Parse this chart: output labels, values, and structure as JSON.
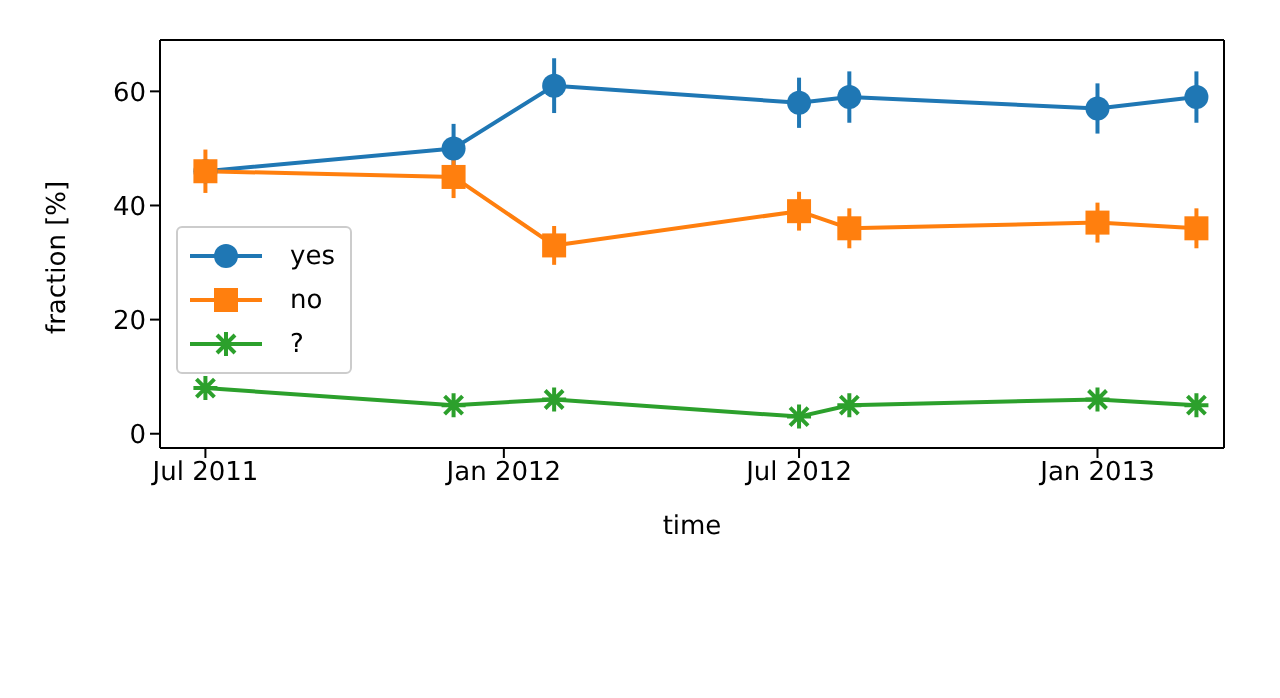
{
  "chart_data": {
    "type": "line",
    "xlabel": "time",
    "ylabel": "fraction [%]",
    "x": [
      "2011-07-01",
      "2011-12-01",
      "2012-02-01",
      "2012-07-01",
      "2012-08-01",
      "2013-01-01",
      "2013-03-03"
    ],
    "xlim": [
      "2011-06-03",
      "2013-03-20"
    ],
    "xticks": [
      {
        "value": "2011-07-01",
        "label": "Jul 2011"
      },
      {
        "value": "2012-01-01",
        "label": "Jan 2012"
      },
      {
        "value": "2012-07-01",
        "label": "Jul 2012"
      },
      {
        "value": "2013-01-01",
        "label": "Jan 2013"
      }
    ],
    "ylim": [
      -2.5,
      69
    ],
    "yticks": [
      0,
      20,
      40,
      60
    ],
    "grid": false,
    "legend": "left",
    "line_style": "solid",
    "series": [
      {
        "name": "yes",
        "color": "#1f77b4",
        "marker": "circle",
        "values": [
          46,
          50,
          61,
          58,
          59,
          57,
          59
        ],
        "errors": [
          null,
          4.3,
          4.8,
          4.4,
          4.5,
          4.4,
          4.5
        ]
      },
      {
        "name": "no",
        "color": "#ff7f0e",
        "marker": "square",
        "values": [
          46,
          45,
          33,
          39,
          36,
          37,
          36
        ],
        "errors": [
          3.8,
          3.7,
          3.4,
          3.4,
          3.5,
          3.5,
          3.5
        ]
      },
      {
        "name": "?",
        "color": "#2ca02c",
        "marker": "cross",
        "values": [
          8,
          5,
          6,
          3,
          5,
          6,
          5
        ]
      }
    ]
  }
}
